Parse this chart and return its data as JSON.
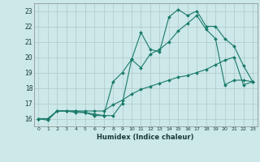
{
  "xlabel": "Humidex (Indice chaleur)",
  "bg_color": "#cce8e8",
  "grid_color": "#b0c8c8",
  "line_color": "#1a7a6a",
  "xlim": [
    -0.5,
    23.5
  ],
  "ylim": [
    15.5,
    23.5
  ],
  "xticks": [
    0,
    1,
    2,
    3,
    4,
    5,
    6,
    7,
    8,
    9,
    10,
    11,
    12,
    13,
    14,
    15,
    16,
    17,
    18,
    19,
    20,
    21,
    22,
    23
  ],
  "yticks": [
    16,
    17,
    18,
    19,
    20,
    21,
    22,
    23
  ],
  "line1_x": [
    0,
    1,
    2,
    3,
    4,
    5,
    6,
    7,
    8,
    9,
    10,
    11,
    12,
    13,
    14,
    15,
    16,
    17,
    18,
    19,
    20,
    21,
    22,
    23
  ],
  "line1_y": [
    16.0,
    15.9,
    16.5,
    16.5,
    16.5,
    16.4,
    16.2,
    16.2,
    16.2,
    17.0,
    19.85,
    21.6,
    20.5,
    20.35,
    22.6,
    23.1,
    22.7,
    23.0,
    22.0,
    22.0,
    21.2,
    20.7,
    19.45,
    18.4
  ],
  "line2_x": [
    0,
    1,
    2,
    3,
    4,
    5,
    6,
    7,
    8,
    9,
    10,
    11,
    12,
    13,
    14,
    15,
    16,
    17,
    18,
    19,
    20,
    21,
    22,
    23
  ],
  "line2_y": [
    16.0,
    16.0,
    16.5,
    16.5,
    16.4,
    16.4,
    16.3,
    16.2,
    18.4,
    19.0,
    19.85,
    19.3,
    20.2,
    20.5,
    21.0,
    21.7,
    22.2,
    22.7,
    21.8,
    21.2,
    18.2,
    18.5,
    18.5,
    18.4
  ],
  "line3_x": [
    0,
    1,
    2,
    3,
    4,
    5,
    6,
    7,
    8,
    9,
    10,
    11,
    12,
    13,
    14,
    15,
    16,
    17,
    18,
    19,
    20,
    21,
    22,
    23
  ],
  "line3_y": [
    16.0,
    16.0,
    16.5,
    16.5,
    16.5,
    16.5,
    16.5,
    16.5,
    16.9,
    17.2,
    17.6,
    17.9,
    18.1,
    18.3,
    18.5,
    18.7,
    18.8,
    19.0,
    19.2,
    19.5,
    19.8,
    20.0,
    18.2,
    18.4
  ]
}
